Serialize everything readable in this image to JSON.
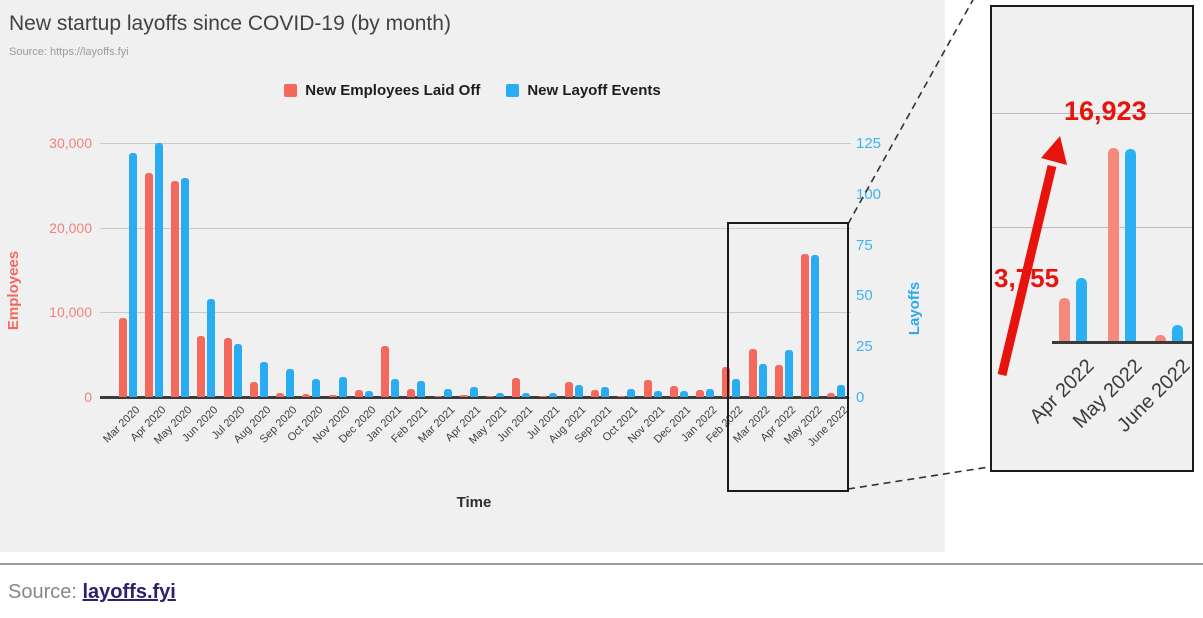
{
  "chart": {
    "title": "New startup layoffs since COVID-19 (by month)",
    "subtitle": "Source: https://layoffs.fyi",
    "legend": [
      {
        "label": "New Employees Laid Off",
        "color": "#f4695c"
      },
      {
        "label": "New Layoff Events",
        "color": "#2aacf2"
      }
    ],
    "left_axis": {
      "label": "Employees",
      "tick_labels": [
        "0",
        "10,000",
        "20,000",
        "30,000"
      ]
    },
    "right_axis": {
      "label": "Layoffs",
      "tick_labels": [
        "0",
        "25",
        "50",
        "75",
        "100",
        "125"
      ]
    },
    "x_axis_title": "Time"
  },
  "chart_data": [
    {
      "type": "bar",
      "title": "New startup layoffs since COVID-19 (by month)",
      "categories": [
        "Mar 2020",
        "Apr 2020",
        "May 2020",
        "Jun 2020",
        "Jul 2020",
        "Aug 2020",
        "Sep 2020",
        "Oct 2020",
        "Nov 2020",
        "Dec 2020",
        "Jan 2021",
        "Feb 2021",
        "Mar 2021",
        "Apr 2021",
        "May 2021",
        "Jun 2021",
        "Jul 2021",
        "Aug 2021",
        "Sep 2021",
        "Oct 2021",
        "Nov 2021",
        "Dec 2021",
        "Jan 2022",
        "Feb 2022",
        "Mar 2022",
        "Apr 2022",
        "May 2022",
        "June 2022"
      ],
      "series": [
        {
          "name": "New Employees Laid Off",
          "axis": "left",
          "values": [
            9300,
            26500,
            25500,
            7200,
            7000,
            1800,
            500,
            300,
            200,
            800,
            6000,
            900,
            100,
            250,
            100,
            2300,
            100,
            1800,
            780,
            150,
            2000,
            1300,
            800,
            3500,
            5700,
            3755,
            16923,
            500
          ]
        },
        {
          "name": "New Layoff Events",
          "axis": "right",
          "values": [
            120,
            125,
            108,
            48,
            26,
            17,
            14,
            9,
            10,
            3,
            9,
            8,
            4,
            5,
            2,
            2,
            2,
            6,
            5,
            4,
            3,
            3,
            4,
            9,
            16,
            23,
            70,
            6
          ]
        }
      ],
      "xlabel": "Time",
      "ylabel_left": "Employees",
      "ylabel_right": "Layoffs",
      "ylim_left": [
        0,
        30000
      ],
      "ylim_right": [
        0,
        125
      ],
      "left_ticks": [
        0,
        10000,
        20000,
        30000
      ],
      "right_ticks": [
        0,
        25,
        50,
        75,
        100,
        125
      ],
      "grid": true,
      "legend_position": "top-center"
    },
    {
      "type": "bar",
      "categories": [
        "Apr 2022",
        "May 2022",
        "June 2022"
      ],
      "series": [
        {
          "name": "New Employees Laid Off",
          "axis": "left",
          "values": [
            3755,
            16923,
            500
          ]
        },
        {
          "name": "New Layoff Events",
          "axis": "right",
          "values": [
            23,
            70,
            6
          ]
        }
      ],
      "ylim_left": [
        0,
        29300
      ],
      "ylim_right": [
        0,
        122
      ],
      "gridline_values": [
        10000,
        20000
      ],
      "annotations": [
        {
          "text": "3,755",
          "for": "Apr 2022"
        },
        {
          "text": "16,923",
          "for": "May 2022"
        }
      ],
      "grid": true
    }
  ],
  "inset": {
    "annotation_apr": "3,755",
    "annotation_may": "16,923"
  },
  "footer": {
    "source_label": "Source:",
    "source_link": "layoffs.fyi"
  },
  "colors": {
    "employees_bar": "#f4695c",
    "events_bar": "#2aacf2",
    "inset_employees_bar": "#f4897c",
    "inset_events_bar": "#2cb0f4",
    "annotation_red": "#e8130c",
    "chart_background": "#f0f0f0",
    "left_axis_text": "#f4695c",
    "right_axis_text": "#2fa8ef"
  }
}
